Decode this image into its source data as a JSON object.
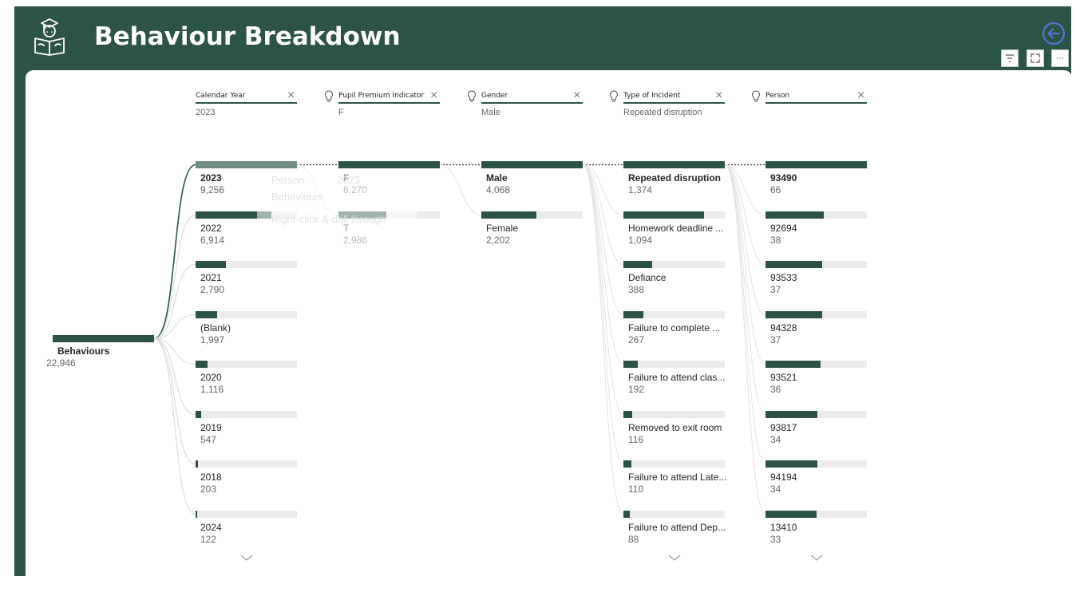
{
  "header": {
    "title": "Behaviour Breakdown"
  },
  "toolbar": {
    "filter_icon": "filter-icon",
    "focus_icon": "focus-mode-icon",
    "more_label": "···"
  },
  "root": {
    "label": "Behaviours",
    "value": "22,946",
    "fraction": 1.0
  },
  "levels": [
    {
      "header": "Calendar Year",
      "selected": "2023",
      "nodes": [
        {
          "label": "2023",
          "value": "9,256",
          "fraction": 1.0,
          "bold": true,
          "muted_value": true
        },
        {
          "label": "2022",
          "value": "6,914",
          "fraction": 0.747
        },
        {
          "label": "2021",
          "value": "2,790",
          "fraction": 0.301
        },
        {
          "label": "(Blank)",
          "value": "1,997",
          "fraction": 0.216
        },
        {
          "label": "2020",
          "value": "1,116",
          "fraction": 0.121
        },
        {
          "label": "2019",
          "value": "547",
          "fraction": 0.059
        },
        {
          "label": "2018",
          "value": "203",
          "fraction": 0.022
        },
        {
          "label": "2024",
          "value": "122",
          "fraction": 0.013
        }
      ]
    },
    {
      "header": "Pupil Premium Indicator",
      "selected": "F",
      "nodes": [
        {
          "label": "F",
          "value": "6,270",
          "fraction": 1.0,
          "bold": true
        },
        {
          "label": "T",
          "value": "2,986",
          "fraction": 0.476
        }
      ]
    },
    {
      "header": "Gender",
      "selected": "Male",
      "nodes": [
        {
          "label": "Male",
          "value": "4,068",
          "fraction": 1.0,
          "bold": true
        },
        {
          "label": "Female",
          "value": "2,202",
          "fraction": 0.541
        }
      ]
    },
    {
      "header": "Type of Incident",
      "selected": "Repeated disruption",
      "nodes": [
        {
          "label": "Repeated disruption",
          "value": "1,374",
          "fraction": 1.0,
          "bold": true
        },
        {
          "label": "Homework deadline ...",
          "value": "1,094",
          "fraction": 0.796
        },
        {
          "label": "Defiance",
          "value": "388",
          "fraction": 0.282
        },
        {
          "label": "Failure to complete ...",
          "value": "267",
          "fraction": 0.194
        },
        {
          "label": "Failure to attend clas...",
          "value": "192",
          "fraction": 0.14
        },
        {
          "label": "Removed to exit room",
          "value": "116",
          "fraction": 0.084
        },
        {
          "label": "Failure to attend Late...",
          "value": "110",
          "fraction": 0.08
        },
        {
          "label": "Failure to attend Dep...",
          "value": "88",
          "fraction": 0.064
        }
      ]
    },
    {
      "header": "Person",
      "selected": "",
      "nodes": [
        {
          "label": "93490",
          "value": "66",
          "fraction": 1.0,
          "bold": true
        },
        {
          "label": "92694",
          "value": "38",
          "fraction": 0.576
        },
        {
          "label": "93533",
          "value": "37",
          "fraction": 0.561
        },
        {
          "label": "94328",
          "value": "37",
          "fraction": 0.561
        },
        {
          "label": "93521",
          "value": "36",
          "fraction": 0.545
        },
        {
          "label": "93817",
          "value": "34",
          "fraction": 0.515
        },
        {
          "label": "94194",
          "value": "34",
          "fraction": 0.515
        },
        {
          "label": "13410",
          "value": "33",
          "fraction": 0.5
        }
      ]
    }
  ],
  "tooltip_ghost": {
    "line1": "Person",
    "line1b": "2023",
    "line2": "Behaviours",
    "line3": "Right-click & drill through"
  },
  "colors": {
    "brand": "#2c5446",
    "track": "#ebebeb",
    "muted": "#6f8f84"
  }
}
